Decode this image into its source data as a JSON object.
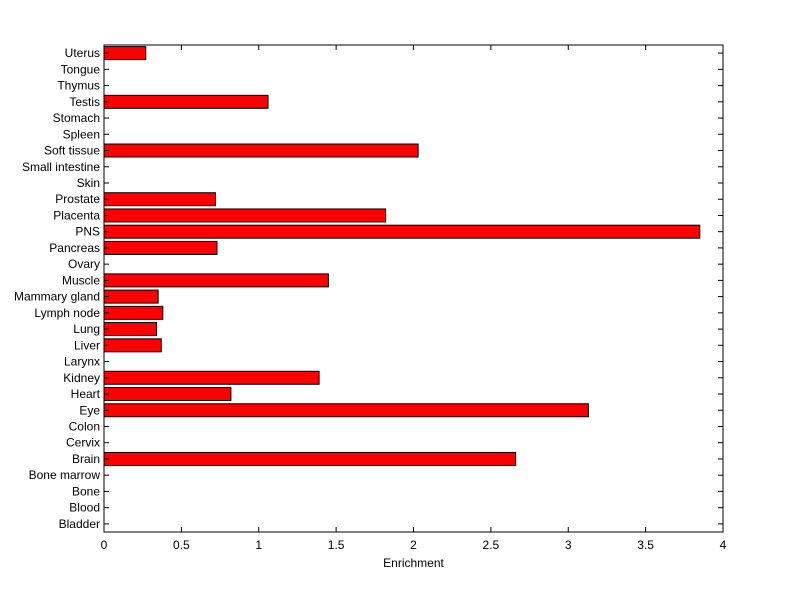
{
  "chart_data": {
    "type": "bar",
    "orientation": "horizontal",
    "title": "",
    "xlabel": "Enrichment",
    "ylabel": "",
    "xlim": [
      0,
      4
    ],
    "xticks": [
      "0",
      "0.5",
      "1",
      "1.5",
      "2",
      "2.5",
      "3",
      "3.5",
      "4"
    ],
    "grid": false,
    "legend": "none",
    "bar_color": "#ff0000",
    "categories": [
      "Bladder",
      "Blood",
      "Bone",
      "Bone marrow",
      "Brain",
      "Cervix",
      "Colon",
      "Eye",
      "Heart",
      "Kidney",
      "Larynx",
      "Liver",
      "Lung",
      "Lymph node",
      "Mammary gland",
      "Muscle",
      "Ovary",
      "Pancreas",
      "PNS",
      "Placenta",
      "Prostate",
      "Skin",
      "Small intestine",
      "Soft tissue",
      "Spleen",
      "Stomach",
      "Testis",
      "Thymus",
      "Tongue",
      "Uterus"
    ],
    "values": [
      0,
      0,
      0,
      0,
      2.66,
      0,
      0,
      3.13,
      0.82,
      1.39,
      0,
      0.37,
      0.34,
      0.38,
      0.35,
      1.45,
      0,
      0.73,
      3.85,
      1.82,
      0.72,
      0,
      0,
      2.03,
      0,
      0,
      1.06,
      0,
      0,
      0.27
    ]
  }
}
